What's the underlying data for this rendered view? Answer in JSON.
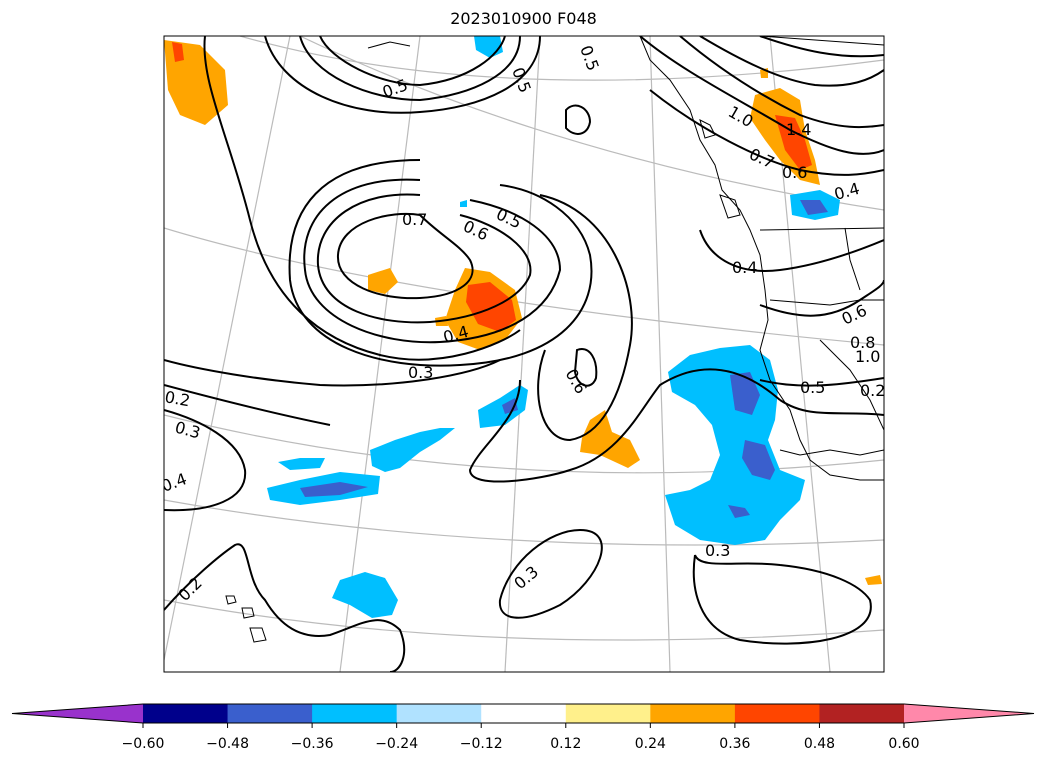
{
  "title": "2023010900 F048",
  "colors": {
    "background": "#ffffff",
    "graticule": "#bbbbbb",
    "contour": "#000000",
    "coast": "#000000"
  },
  "contour_labels": [
    "0.7",
    "0.6",
    "0.5",
    "0.5",
    "0.5",
    "0.5",
    "0.4",
    "0.3",
    "0.6",
    "0.2",
    "0.3",
    "0.4",
    "0.2",
    "0.3",
    "0.3",
    "1.4",
    "1.0",
    "0.7",
    "0.6",
    "0.4",
    "0.4",
    "0.6",
    "0.8",
    "1.0",
    "0.5",
    "0.2"
  ],
  "colorbar": {
    "bins": [
      {
        "color": "#9932cc"
      },
      {
        "color": "#00008b"
      },
      {
        "color": "#3a5fcd"
      },
      {
        "color": "#00bfff"
      },
      {
        "color": "#b0e2ff"
      },
      {
        "color": "#ffffff"
      },
      {
        "color": "#fff08b"
      },
      {
        "color": "#ffa500"
      },
      {
        "color": "#ff4500"
      },
      {
        "color": "#b22222"
      },
      {
        "color": "#ff88aa"
      }
    ],
    "ticks": [
      "−0.60",
      "−0.48",
      "−0.36",
      "−0.24",
      "−0.12",
      "0.12",
      "0.24",
      "0.36",
      "0.48",
      "0.60"
    ]
  }
}
